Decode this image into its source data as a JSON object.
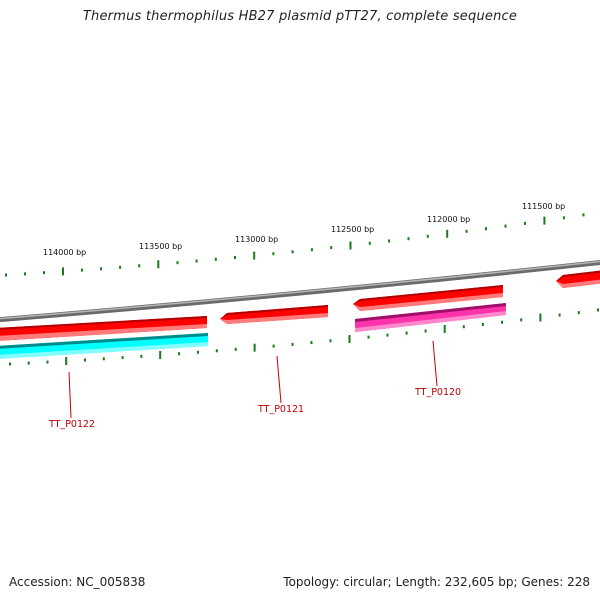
{
  "title": "Thermus thermophilus HB27 plasmid pTT27, complete sequence",
  "footer": {
    "accession": "Accession: NC_005838",
    "topology": "Topology: circular; Length: 232,605 bp; Genes: 228"
  },
  "ruler": {
    "labels": [
      "114000 bp",
      "113500 bp",
      "113000 bp",
      "112500 bp",
      "112000 bp",
      "111500 bp"
    ],
    "tick_color": "#1a7a1a"
  },
  "colors": {
    "backbone": "#888888",
    "forward_gene": "#ff0000",
    "forward_gene_light": "#ff7070",
    "reverse_gene_cyan": "#00ffff",
    "reverse_gene_magenta": "#ff33aa",
    "label": "#c00000"
  },
  "genes": [
    {
      "name": "TT_P0122"
    },
    {
      "name": "TT_P0121"
    },
    {
      "name": "TT_P0120"
    }
  ]
}
